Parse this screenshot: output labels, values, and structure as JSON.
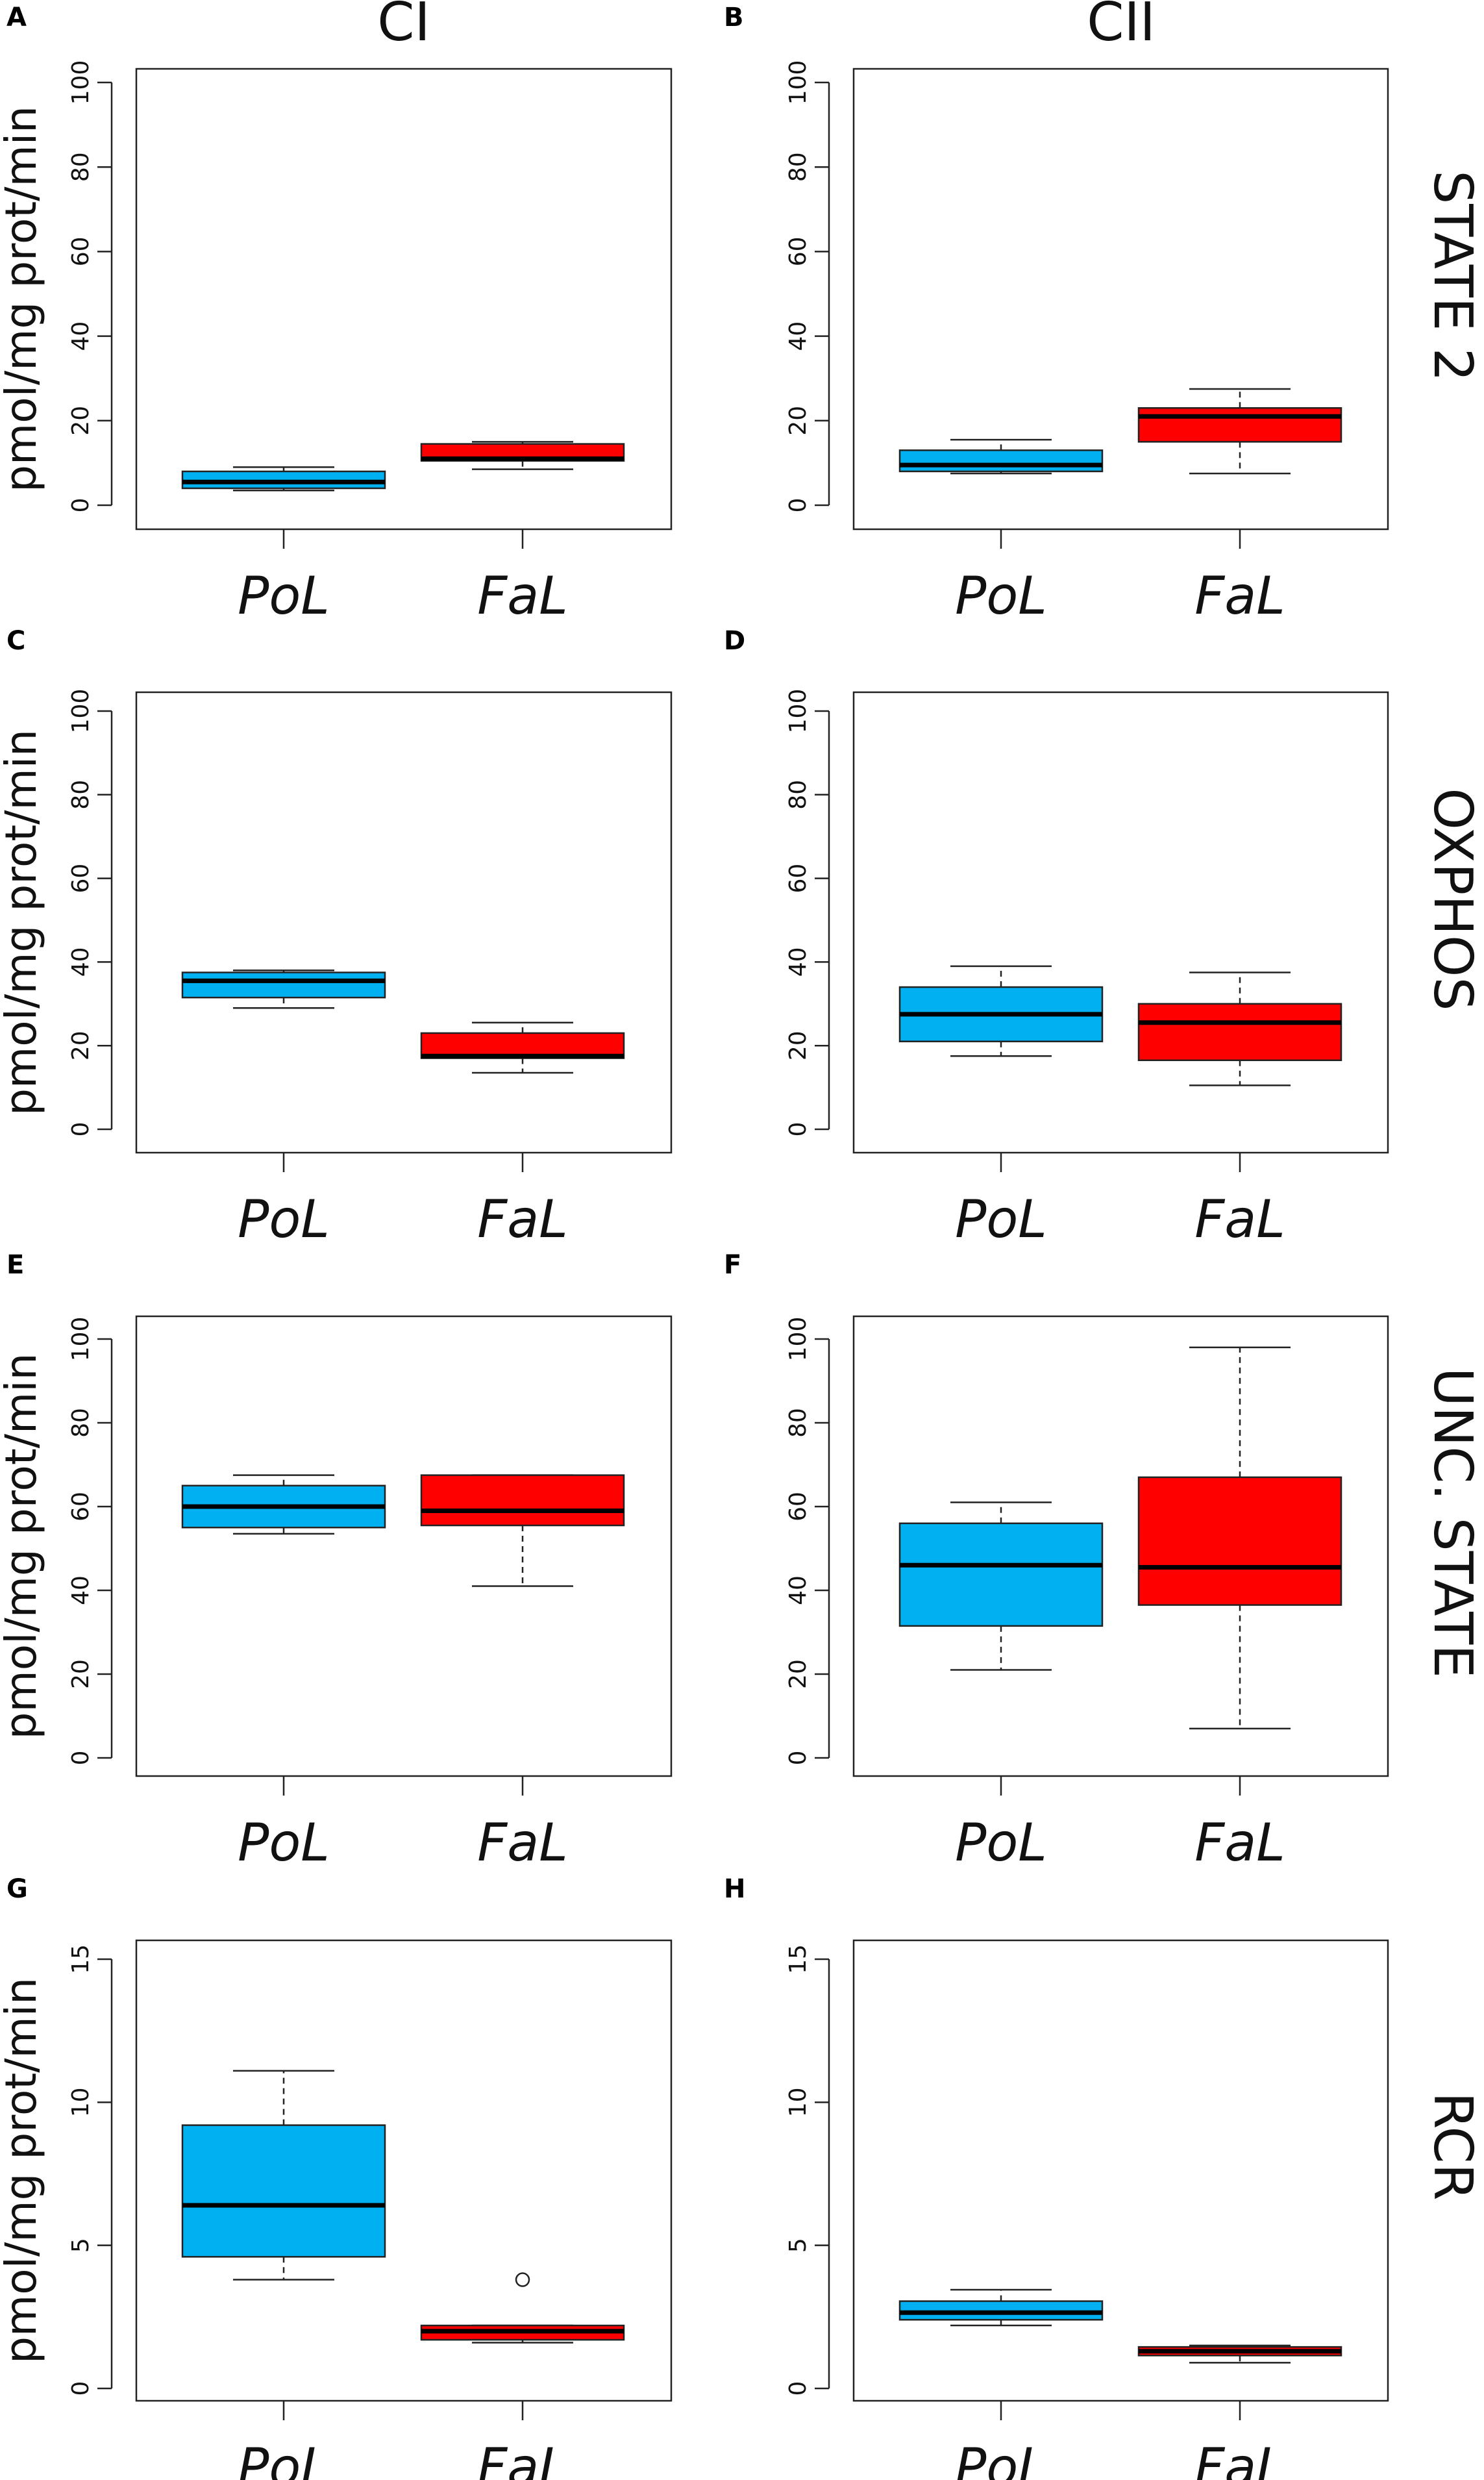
{
  "figure": {
    "column_titles": [
      "CI",
      "CII"
    ],
    "row_titles": [
      "STATE 2",
      "OXPHOS",
      "UNC. STATE",
      "RCR"
    ],
    "colors": {
      "PoL": "#00b0f0",
      "FaL": "#ff0000",
      "axis": "#222222",
      "median": "#000000"
    }
  },
  "chart_data": [
    {
      "panel": "A",
      "type": "boxplot",
      "column": "CI",
      "row": "STATE 2",
      "ylabel": "pmol/mg prot/min",
      "ylim": [
        0,
        100
      ],
      "yticks": [
        0,
        20,
        40,
        60,
        80,
        100
      ],
      "categories": [
        "PoL",
        "FaL"
      ],
      "boxes": [
        {
          "name": "PoL",
          "whisker_low": 3.5,
          "q1": 4,
          "median": 5.5,
          "q3": 8,
          "whisker_high": 9,
          "outliers": []
        },
        {
          "name": "FaL",
          "whisker_low": 8.5,
          "q1": 10.5,
          "median": 11,
          "q3": 14.5,
          "whisker_high": 15,
          "outliers": []
        }
      ]
    },
    {
      "panel": "B",
      "type": "boxplot",
      "column": "CII",
      "row": "STATE 2",
      "ylabel": "",
      "ylim": [
        0,
        100
      ],
      "yticks": [
        0,
        20,
        40,
        60,
        80,
        100
      ],
      "categories": [
        "PoL",
        "FaL"
      ],
      "boxes": [
        {
          "name": "PoL",
          "whisker_low": 7.5,
          "q1": 8,
          "median": 9.5,
          "q3": 13,
          "whisker_high": 15.5,
          "outliers": []
        },
        {
          "name": "FaL",
          "whisker_low": 7.5,
          "q1": 15,
          "median": 21,
          "q3": 23,
          "whisker_high": 27.5,
          "outliers": []
        }
      ]
    },
    {
      "panel": "C",
      "type": "boxplot",
      "column": "CI",
      "row": "OXPHOS",
      "ylabel": "pmol/mg prot/min",
      "ylim": [
        0,
        100
      ],
      "yticks": [
        0,
        20,
        40,
        60,
        80,
        100
      ],
      "categories": [
        "PoL",
        "FaL"
      ],
      "boxes": [
        {
          "name": "PoL",
          "whisker_low": 29,
          "q1": 31.5,
          "median": 35.5,
          "q3": 37.5,
          "whisker_high": 38,
          "outliers": []
        },
        {
          "name": "FaL",
          "whisker_low": 13.5,
          "q1": 17,
          "median": 17.5,
          "q3": 23,
          "whisker_high": 25.5,
          "outliers": []
        }
      ]
    },
    {
      "panel": "D",
      "type": "boxplot",
      "column": "CII",
      "row": "OXPHOS",
      "ylabel": "",
      "ylim": [
        0,
        100
      ],
      "yticks": [
        0,
        20,
        40,
        60,
        80,
        100
      ],
      "categories": [
        "PoL",
        "FaL"
      ],
      "boxes": [
        {
          "name": "PoL",
          "whisker_low": 17.5,
          "q1": 21,
          "median": 27.5,
          "q3": 34,
          "whisker_high": 39,
          "outliers": []
        },
        {
          "name": "FaL",
          "whisker_low": 10.5,
          "q1": 16.5,
          "median": 25.5,
          "q3": 30,
          "whisker_high": 37.5,
          "outliers": []
        }
      ]
    },
    {
      "panel": "E",
      "type": "boxplot",
      "column": "CI",
      "row": "UNC. STATE",
      "ylabel": "pmol/mg prot/min",
      "ylim": [
        0,
        100
      ],
      "yticks": [
        0,
        20,
        40,
        60,
        80,
        100
      ],
      "categories": [
        "PoL",
        "FaL"
      ],
      "boxes": [
        {
          "name": "PoL",
          "whisker_low": 53.5,
          "q1": 55,
          "median": 60,
          "q3": 65,
          "whisker_high": 67.5,
          "outliers": []
        },
        {
          "name": "FaL",
          "whisker_low": 41,
          "q1": 55.5,
          "median": 59,
          "q3": 67.5,
          "whisker_high": 67.5,
          "outliers": []
        }
      ]
    },
    {
      "panel": "F",
      "type": "boxplot",
      "column": "CII",
      "row": "UNC. STATE",
      "ylabel": "",
      "ylim": [
        0,
        100
      ],
      "yticks": [
        0,
        20,
        40,
        60,
        80,
        100
      ],
      "categories": [
        "PoL",
        "FaL"
      ],
      "boxes": [
        {
          "name": "PoL",
          "whisker_low": 21,
          "q1": 31.5,
          "median": 46,
          "q3": 56,
          "whisker_high": 61,
          "outliers": []
        },
        {
          "name": "FaL",
          "whisker_low": 7,
          "q1": 36.5,
          "median": 45.5,
          "q3": 67,
          "whisker_high": 98,
          "outliers": []
        }
      ]
    },
    {
      "panel": "G",
      "type": "boxplot",
      "column": "CI",
      "row": "RCR",
      "ylabel": "pmol/mg prot/min",
      "ylim": [
        0,
        15
      ],
      "yticks": [
        0,
        5,
        10,
        15
      ],
      "categories": [
        "PoL",
        "FaL"
      ],
      "boxes": [
        {
          "name": "PoL",
          "whisker_low": 3.8,
          "q1": 4.6,
          "median": 6.4,
          "q3": 9.2,
          "whisker_high": 11.1,
          "outliers": []
        },
        {
          "name": "FaL",
          "whisker_low": 1.6,
          "q1": 1.7,
          "median": 2.0,
          "q3": 2.2,
          "whisker_high": 2.2,
          "outliers": [
            3.8
          ]
        }
      ]
    },
    {
      "panel": "H",
      "type": "boxplot",
      "column": "CII",
      "row": "RCR",
      "ylabel": "",
      "ylim": [
        0,
        15
      ],
      "yticks": [
        0,
        5,
        10,
        15
      ],
      "categories": [
        "PoL",
        "FaL"
      ],
      "boxes": [
        {
          "name": "PoL",
          "whisker_low": 2.2,
          "q1": 2.4,
          "median": 2.65,
          "q3": 3.05,
          "whisker_high": 3.45,
          "outliers": []
        },
        {
          "name": "FaL",
          "whisker_low": 0.9,
          "q1": 1.15,
          "median": 1.3,
          "q3": 1.45,
          "whisker_high": 1.5,
          "outliers": []
        }
      ]
    }
  ]
}
